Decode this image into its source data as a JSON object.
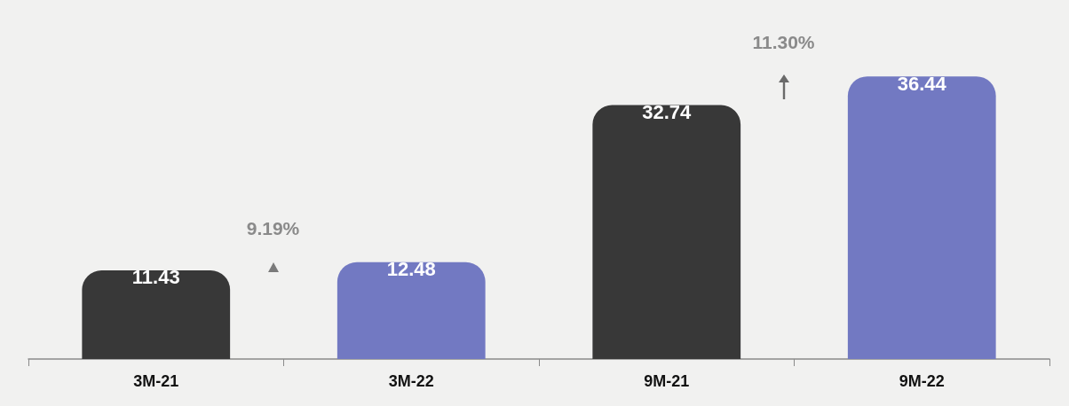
{
  "chart_data": {
    "type": "bar",
    "categories": [
      "3M-21",
      "3M-22",
      "9M-21",
      "9M-22"
    ],
    "values": [
      11.43,
      12.48,
      32.74,
      36.44
    ],
    "colors": [
      "#383838",
      "#7279c2",
      "#383838",
      "#7279c2"
    ],
    "data_labels": true,
    "annotations": [
      "9.19%",
      "11.30%"
    ]
  }
}
